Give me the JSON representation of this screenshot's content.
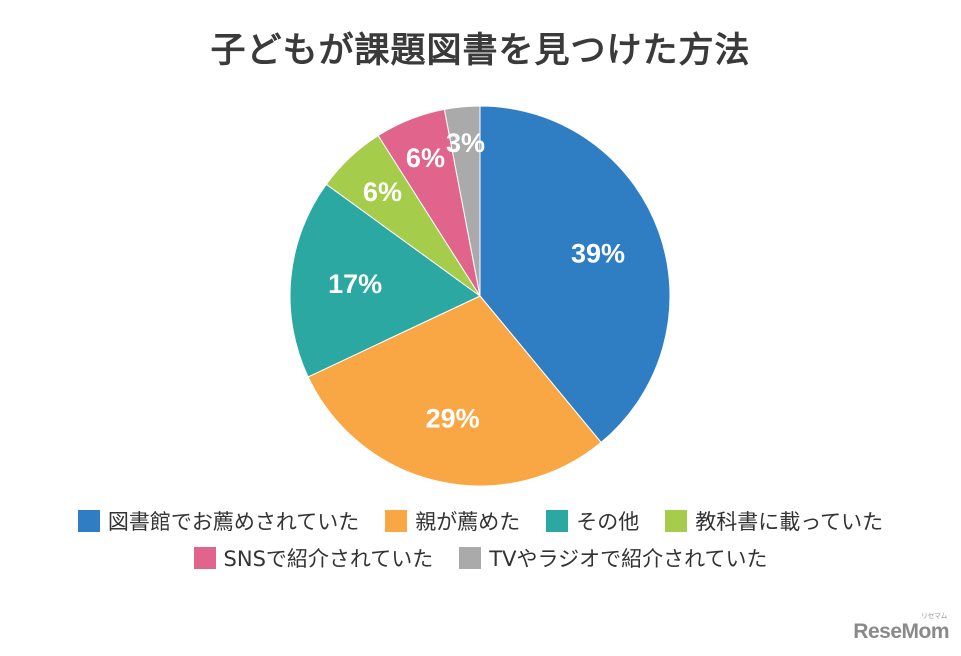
{
  "chart_data": {
    "type": "pie",
    "title": "子どもが課題図書を見つけた方法",
    "slices": [
      {
        "label": "図書館でお薦めされていた",
        "value": 39,
        "display": "39%",
        "color": "#2f7ec4"
      },
      {
        "label": "親が薦めた",
        "value": 29,
        "display": "29%",
        "color": "#f8a744"
      },
      {
        "label": "その他",
        "value": 17,
        "display": "17%",
        "color": "#2ba8a2"
      },
      {
        "label": "教科書に載っていた",
        "value": 6,
        "display": "6%",
        "color": "#a5cc4b"
      },
      {
        "label": "SNSで紹介されていた",
        "value": 6,
        "display": "6%",
        "color": "#e0648c"
      },
      {
        "label": "TVやラジオで紹介されていた",
        "value": 3,
        "display": "3%",
        "color": "#aaaaaa"
      }
    ],
    "start": "12 o'clock",
    "direction": "clockwise",
    "legend_position": "bottom"
  },
  "watermark": {
    "text": "ReseMom",
    "small_text": "リセマム"
  }
}
